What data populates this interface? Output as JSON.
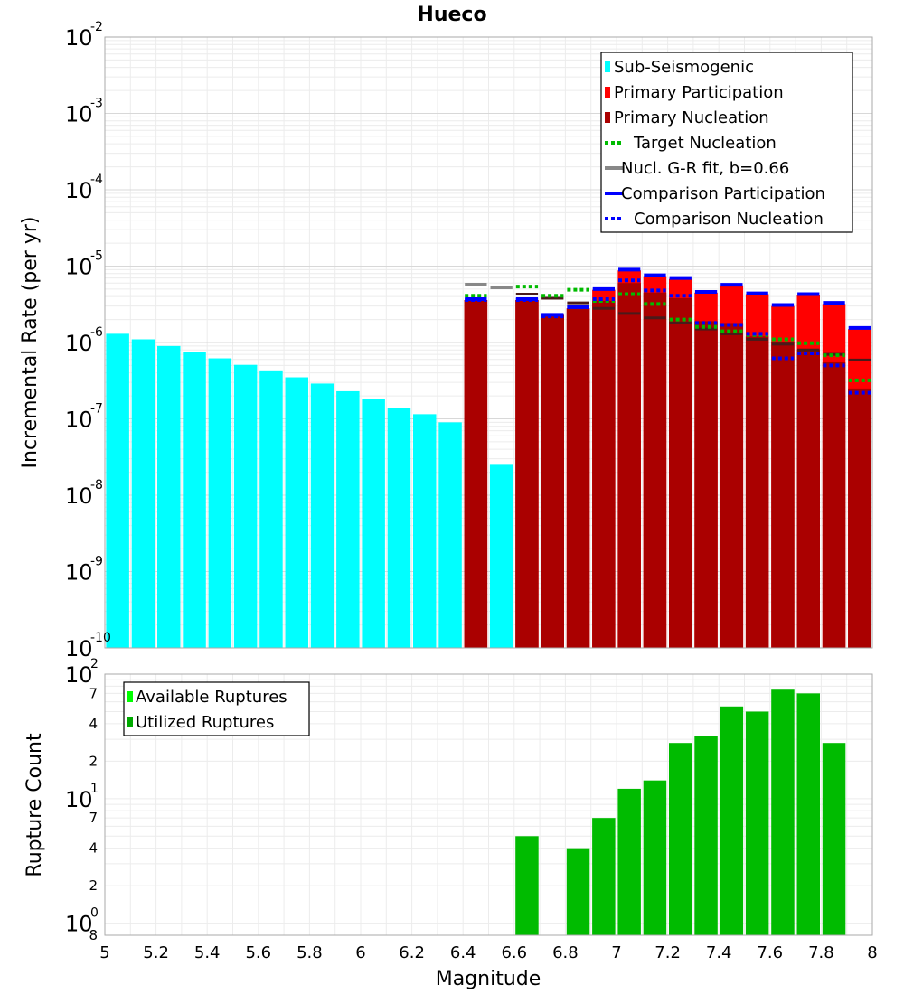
{
  "chart_data": [
    {
      "type": "bar",
      "title": "Hueco",
      "ylabel": "Incremental Rate (per yr)",
      "xlabel": "",
      "yscale": "log",
      "ylim": [
        1e-10,
        0.01
      ],
      "xlim": [
        5,
        8
      ],
      "y_tick_labels": [
        {
          "base": "10",
          "exp": "-10"
        },
        {
          "base": "10",
          "exp": "-9"
        },
        {
          "base": "10",
          "exp": "-8"
        },
        {
          "base": "10",
          "exp": "-7"
        },
        {
          "base": "10",
          "exp": "-6"
        },
        {
          "base": "10",
          "exp": "-5"
        },
        {
          "base": "10",
          "exp": "-4"
        },
        {
          "base": "10",
          "exp": "-3"
        },
        {
          "base": "10",
          "exp": "-2"
        }
      ],
      "legend_position": "top-right",
      "legend": [
        {
          "label": "Sub-Seismogenic",
          "color": "#00ffff",
          "style": "box"
        },
        {
          "label": "Primary Participation",
          "color": "#ff0000",
          "style": "box"
        },
        {
          "label": "Primary Nucleation",
          "color": "#aa0000",
          "style": "box"
        },
        {
          "label": "Target Nucleation",
          "color": "#00bb00",
          "style": "dotted"
        },
        {
          "label": "Nucl. G-R fit, b=0.66",
          "color": "#888888",
          "style": "solid"
        },
        {
          "label": "Comparison Participation",
          "color": "#0000ff",
          "style": "solid"
        },
        {
          "label": "Comparison Nucleation",
          "color": "#0000ff",
          "style": "dotted"
        }
      ],
      "bin_width": 0.1,
      "sub_seismogenic": {
        "x": [
          5.05,
          5.15,
          5.25,
          5.35,
          5.45,
          5.55,
          5.65,
          5.75,
          5.85,
          5.95,
          6.05,
          6.15,
          6.25,
          6.35,
          6.55
        ],
        "values": [
          1.3e-06,
          1.1e-06,
          9e-07,
          7.5e-07,
          6.2e-07,
          5.1e-07,
          4.2e-07,
          3.5e-07,
          2.9e-07,
          2.3e-07,
          1.8e-07,
          1.4e-07,
          1.15e-07,
          9e-08,
          2.5e-08
        ]
      },
      "x_mag": [
        6.45,
        6.65,
        6.75,
        6.85,
        6.95,
        7.05,
        7.15,
        7.25,
        7.35,
        7.45,
        7.55,
        7.65,
        7.75,
        7.85,
        7.95
      ],
      "primary_participation": [
        3.6e-06,
        3.6e-06,
        2.3e-06,
        2.8e-06,
        4.9e-06,
        8.8e-06,
        7.4e-06,
        6.8e-06,
        4.5e-06,
        5.6e-06,
        4.3e-06,
        3e-06,
        4.2e-06,
        3.2e-06,
        1.5e-06
      ],
      "primary_nucleation": [
        3.6e-06,
        3.6e-06,
        2.3e-06,
        2.8e-06,
        3.5e-06,
        6e-06,
        4.5e-06,
        3.8e-06,
        1.9e-06,
        1.8e-06,
        1.2e-06,
        1e-06,
        8e-07,
        5.5e-07,
        2.5e-07
      ],
      "target_nucleation": [
        4.1e-06,
        5.4e-06,
        4.1e-06,
        4.9e-06,
        3.5e-06,
        4.3e-06,
        3.2e-06,
        2e-06,
        1.6e-06,
        1.4e-06,
        1.25e-06,
        1.1e-06,
        9.8e-07,
        6.8e-07,
        3.2e-07
      ],
      "gr_fit": [
        5.8e-06,
        5.2e-06,
        4.3e-06,
        3.8e-06,
        3.3e-06,
        2.8e-06,
        2.4e-06,
        2.1e-06,
        1.8e-06,
        1.5e-06,
        1.3e-06,
        1.1e-06,
        9.5e-07,
        8e-07,
        7e-07,
        5.9e-07
      ],
      "gr_fit_x": [
        6.45,
        6.55,
        6.65,
        6.75,
        6.85,
        6.95,
        7.05,
        7.15,
        7.25,
        7.35,
        7.45,
        7.55,
        7.65,
        7.75,
        7.85,
        7.95
      ],
      "comparison_participation": [
        3.7e-06,
        3.7e-06,
        2.3e-06,
        2.9e-06,
        5e-06,
        9e-06,
        7.6e-06,
        7e-06,
        4.6e-06,
        5.7e-06,
        4.4e-06,
        3.1e-06,
        4.3e-06,
        3.3e-06,
        1.55e-06
      ],
      "comparison_nucleation": [
        3.6e-06,
        3.6e-06,
        2.2e-06,
        2.9e-06,
        3.7e-06,
        6.5e-06,
        4.8e-06,
        4.1e-06,
        1.8e-06,
        1.7e-06,
        1.3e-06,
        6.2e-07,
        7.2e-07,
        5e-07,
        2.2e-07
      ]
    },
    {
      "type": "bar",
      "title": "",
      "ylabel": "Rupture Count",
      "xlabel": "Magnitude",
      "yscale": "log",
      "ylim": [
        0.8,
        100
      ],
      "xlim": [
        5,
        8
      ],
      "x_tick_labels": [
        "5",
        "5.2",
        "5.4",
        "5.6",
        "5.8",
        "6",
        "6.2",
        "6.4",
        "6.6",
        "6.8",
        "7",
        "7.2",
        "7.4",
        "7.6",
        "7.8",
        "8"
      ],
      "y_tick_labels": [
        {
          "base": "10",
          "exp": "0"
        },
        {
          "base": "10",
          "exp": "1"
        },
        {
          "base": "10",
          "exp": "2"
        }
      ],
      "y_minor_labels": [
        "8",
        "2",
        "4",
        "7",
        "2",
        "4",
        "7"
      ],
      "legend_position": "top-left",
      "legend": [
        {
          "label": "Available Ruptures",
          "color": "#00ff00",
          "style": "box"
        },
        {
          "label": "Utilized Ruptures",
          "color": "#00aa00",
          "style": "box"
        }
      ],
      "x": [
        6.65,
        6.85,
        6.95,
        7.05,
        7.15,
        7.25,
        7.35,
        7.45,
        7.55,
        7.65,
        7.75,
        7.85
      ],
      "utilized": [
        5,
        4,
        7,
        12,
        14,
        28,
        32,
        55,
        50,
        75,
        70,
        28
      ]
    }
  ]
}
